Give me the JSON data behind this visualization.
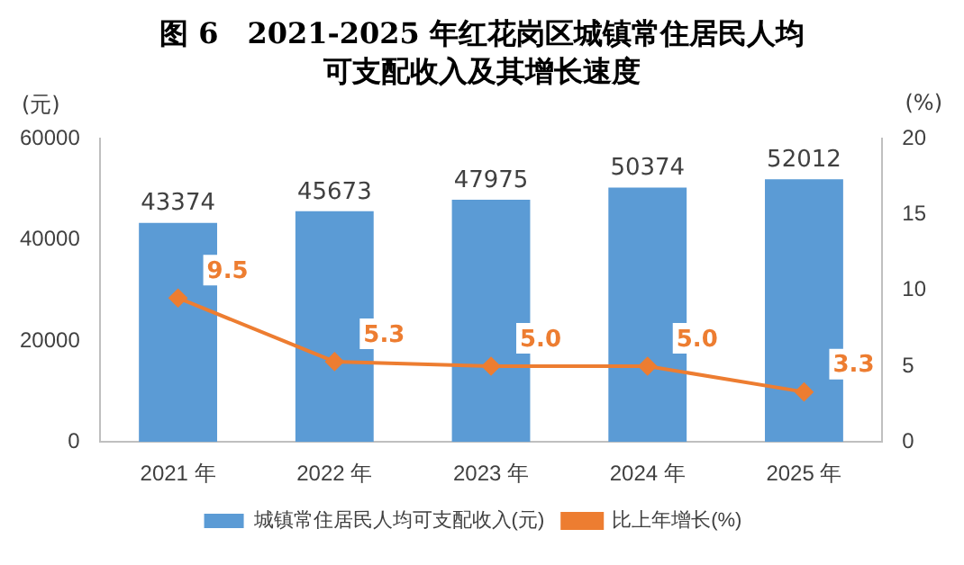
{
  "chart_data": {
    "type": "bar",
    "title": "图 6　2021-2025 年红花岗区城镇常住居民人均可支配收入及其增长速度",
    "ylabel": "(元)",
    "y2label": "(%)",
    "categories": [
      "2021 年",
      "2022 年",
      "2023 年",
      "2024 年",
      "2025 年"
    ],
    "series": [
      {
        "name": "城镇常住居民人均可支配收入(元)",
        "color": "#5b9bd5",
        "values": [
          43374,
          45673,
          47975,
          50374,
          52012
        ]
      },
      {
        "name": "比上年增长(%)",
        "type": "line",
        "axis": "y2",
        "color": "#ed7d31",
        "marker": "diamond",
        "values": [
          9.5,
          5.3,
          5.0,
          5.0,
          3.3
        ],
        "value_labels": [
          "9.5",
          "5.3",
          "5.0",
          "5.0",
          "3.3"
        ]
      }
    ],
    "ylim": [
      0,
      60000
    ],
    "yticks": [
      0,
      20000,
      40000,
      60000
    ],
    "y2lim": [
      0,
      20
    ],
    "y2ticks": [
      0,
      5,
      10,
      15,
      20
    ],
    "data_labels": true,
    "grid": false,
    "legend": "bottom"
  }
}
